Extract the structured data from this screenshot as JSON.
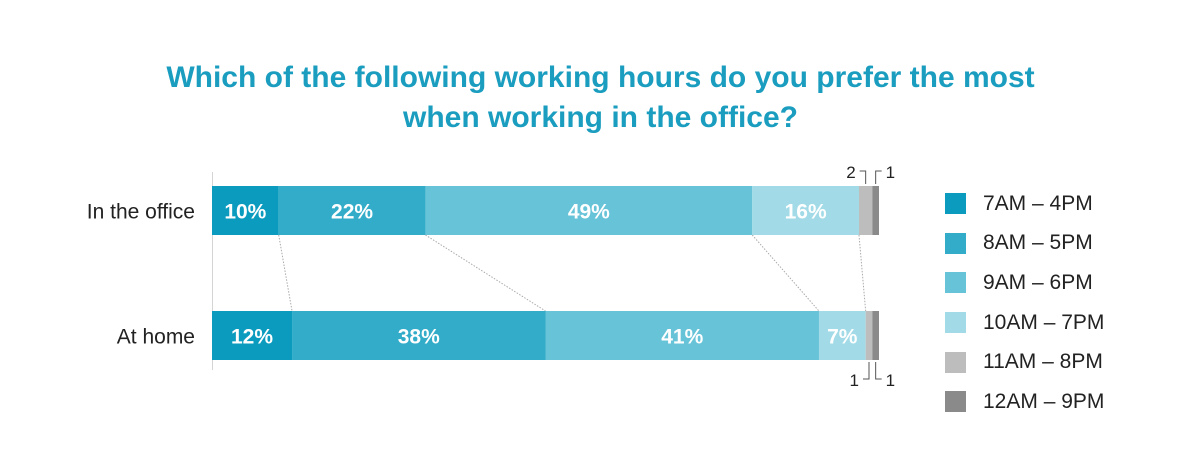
{
  "chart_data": {
    "type": "bar",
    "orientation": "horizontal",
    "stacked": true,
    "title": "Which of the following working hours do you prefer the most when working in the office?",
    "title_lines": [
      "Which of the following working hours do you prefer the most",
      "when working in the office?"
    ],
    "categories": [
      "In the office",
      "At home"
    ],
    "series": [
      {
        "name": "7AM – 4PM",
        "color": "#0a9bbf",
        "values": [
          10,
          12
        ]
      },
      {
        "name": "8AM – 5PM",
        "color": "#32acc9",
        "values": [
          22,
          38
        ]
      },
      {
        "name": "9AM – 6PM",
        "color": "#67c3d8",
        "values": [
          49,
          41
        ]
      },
      {
        "name": "10AM – 7PM",
        "color": "#a2dbe7",
        "values": [
          16,
          7
        ]
      },
      {
        "name": "11AM – 8PM",
        "color": "#bdbdbd",
        "values": [
          2,
          1
        ]
      },
      {
        "name": "12AM – 9PM",
        "color": "#8a8a8a",
        "values": [
          1,
          1
        ]
      }
    ],
    "data_labels": [
      [
        "10%",
        "22%",
        "49%",
        "16%",
        "2",
        "1"
      ],
      [
        "12%",
        "38%",
        "41%",
        "7%",
        "1",
        "1"
      ]
    ],
    "xlim": [
      0,
      100
    ],
    "legend_position": "right",
    "grid": false
  }
}
